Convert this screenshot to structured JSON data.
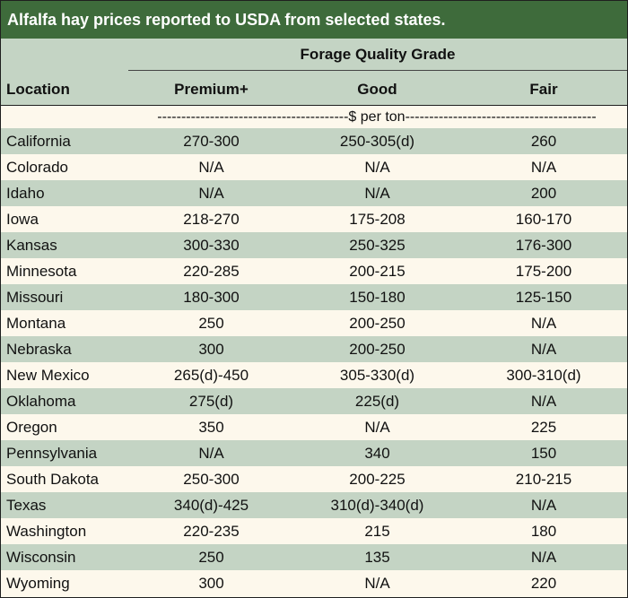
{
  "title": "Alfalfa hay prices reported to USDA from selected states.",
  "header": {
    "group_label": "Forage Quality Grade",
    "location_label": "Location",
    "columns": [
      "Premium+",
      "Good",
      "Fair"
    ]
  },
  "units_label": "----------------------------------------$ per ton----------------------------------------",
  "rows": [
    {
      "location": "California",
      "premium": "270-300",
      "good": "250-305(d)",
      "fair": "260"
    },
    {
      "location": "Colorado",
      "premium": "N/A",
      "good": "N/A",
      "fair": "N/A"
    },
    {
      "location": "Idaho",
      "premium": "N/A",
      "good": "N/A",
      "fair": "200"
    },
    {
      "location": "Iowa",
      "premium": "218-270",
      "good": "175-208",
      "fair": "160-170"
    },
    {
      "location": "Kansas",
      "premium": "300-330",
      "good": "250-325",
      "fair": "176-300"
    },
    {
      "location": "Minnesota",
      "premium": "220-285",
      "good": "200-215",
      "fair": "175-200"
    },
    {
      "location": "Missouri",
      "premium": "180-300",
      "good": "150-180",
      "fair": "125-150"
    },
    {
      "location": "Montana",
      "premium": "250",
      "good": "200-250",
      "fair": "N/A"
    },
    {
      "location": "Nebraska",
      "premium": "300",
      "good": "200-250",
      "fair": "N/A"
    },
    {
      "location": "New Mexico",
      "premium": "265(d)-450",
      "good": "305-330(d)",
      "fair": "300-310(d)"
    },
    {
      "location": "Oklahoma",
      "premium": "275(d)",
      "good": "225(d)",
      "fair": "N/A"
    },
    {
      "location": "Oregon",
      "premium": "350",
      "good": "N/A",
      "fair": "225"
    },
    {
      "location": "Pennsylvania",
      "premium": "N/A",
      "good": "340",
      "fair": "150"
    },
    {
      "location": "South Dakota",
      "premium": "250-300",
      "good": "200-225",
      "fair": "210-215"
    },
    {
      "location": "Texas",
      "premium": "340(d)-425",
      "good": "310(d)-340(d)",
      "fair": "N/A"
    },
    {
      "location": "Washington",
      "premium": "220-235",
      "good": "215",
      "fair": "180"
    },
    {
      "location": "Wisconsin",
      "premium": "250",
      "good": "135",
      "fair": "N/A"
    },
    {
      "location": "Wyoming",
      "premium": "300",
      "good": "N/A",
      "fair": "220"
    }
  ],
  "colors": {
    "title_bg": "#3e6b3b",
    "shade_row": "#c4d4c4",
    "light_row": "#fdf8ec"
  }
}
